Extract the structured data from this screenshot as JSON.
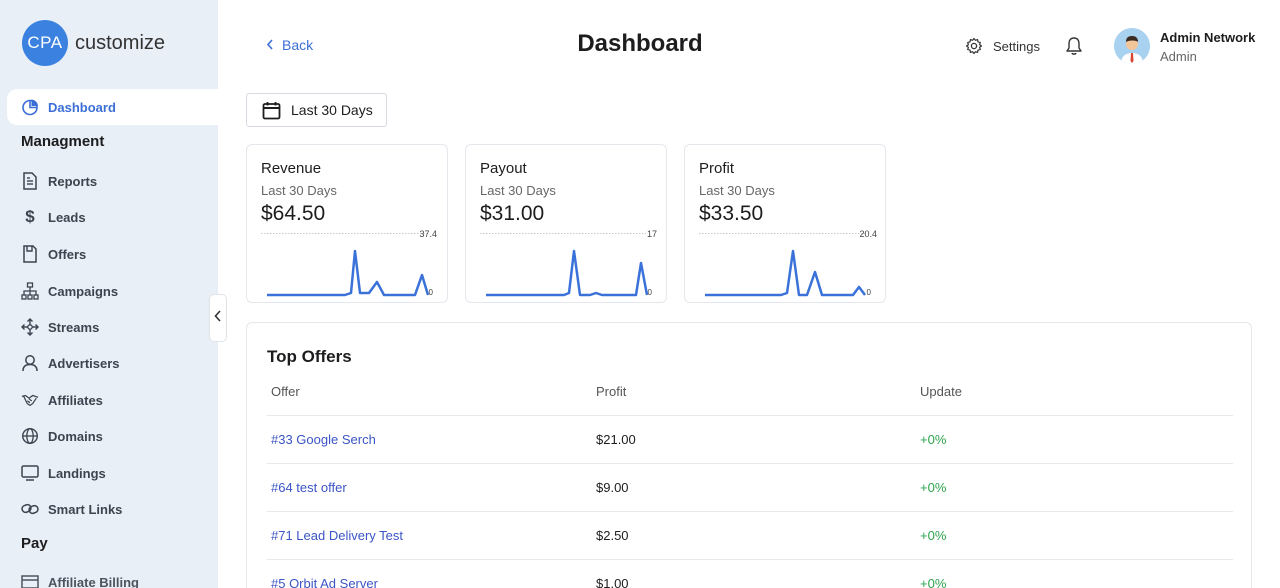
{
  "logo": {
    "badge": "CPA",
    "text": "customize"
  },
  "sidebar": {
    "active_item": "Dashboard",
    "section_managment": "Managment",
    "items": [
      {
        "label": "Reports",
        "icon": "reports-icon"
      },
      {
        "label": "Leads",
        "icon": "dollar-icon"
      },
      {
        "label": "Offers",
        "icon": "offers-icon"
      },
      {
        "label": "Campaigns",
        "icon": "sitemap-icon"
      },
      {
        "label": "Streams",
        "icon": "move-arrows-icon"
      },
      {
        "label": "Advertisers",
        "icon": "user-icon"
      },
      {
        "label": "Affiliates",
        "icon": "handshake-icon"
      },
      {
        "label": "Domains",
        "icon": "globe-icon"
      },
      {
        "label": "Landings",
        "icon": "monitor-icon"
      },
      {
        "label": "Smart Links",
        "icon": "link-icon"
      }
    ],
    "section_pay": "Pay",
    "partial_item": "Affiliate Billing"
  },
  "header": {
    "back_label": "Back",
    "title": "Dashboard",
    "settings_label": "Settings",
    "user_name": "Admin Network",
    "user_role": "Admin"
  },
  "date_filter": {
    "label": "Last 30 Days"
  },
  "cards": [
    {
      "title": "Revenue",
      "period": "Last 30 Days",
      "value": "$64.50",
      "max_label": "37.4",
      "min_label": "0"
    },
    {
      "title": "Payout",
      "period": "Last 30 Days",
      "value": "$31.00",
      "max_label": "17",
      "min_label": "0"
    },
    {
      "title": "Profit",
      "period": "Last 30 Days",
      "value": "$33.50",
      "max_label": "20.4",
      "min_label": "0"
    }
  ],
  "top_offers": {
    "title": "Top Offers",
    "columns": [
      "Offer",
      "Profit",
      "Update"
    ],
    "rows": [
      {
        "offer": "#33 Google Serch",
        "profit": "$21.00",
        "update": "+0%"
      },
      {
        "offer": "#64 test offer",
        "profit": "$9.00",
        "update": "+0%"
      },
      {
        "offer": "#71 Lead Delivery Test",
        "profit": "$2.50",
        "update": "+0%"
      },
      {
        "offer": "#5 Orbit Ad Server",
        "profit": "$1.00",
        "update": "+0%"
      }
    ]
  },
  "colors": {
    "accent": "#3b6fd6",
    "logo": "#3b82e0",
    "sparkline": "#3b72d9",
    "positive": "#2ea44f",
    "sidebar_bg": "#e9eff6"
  }
}
